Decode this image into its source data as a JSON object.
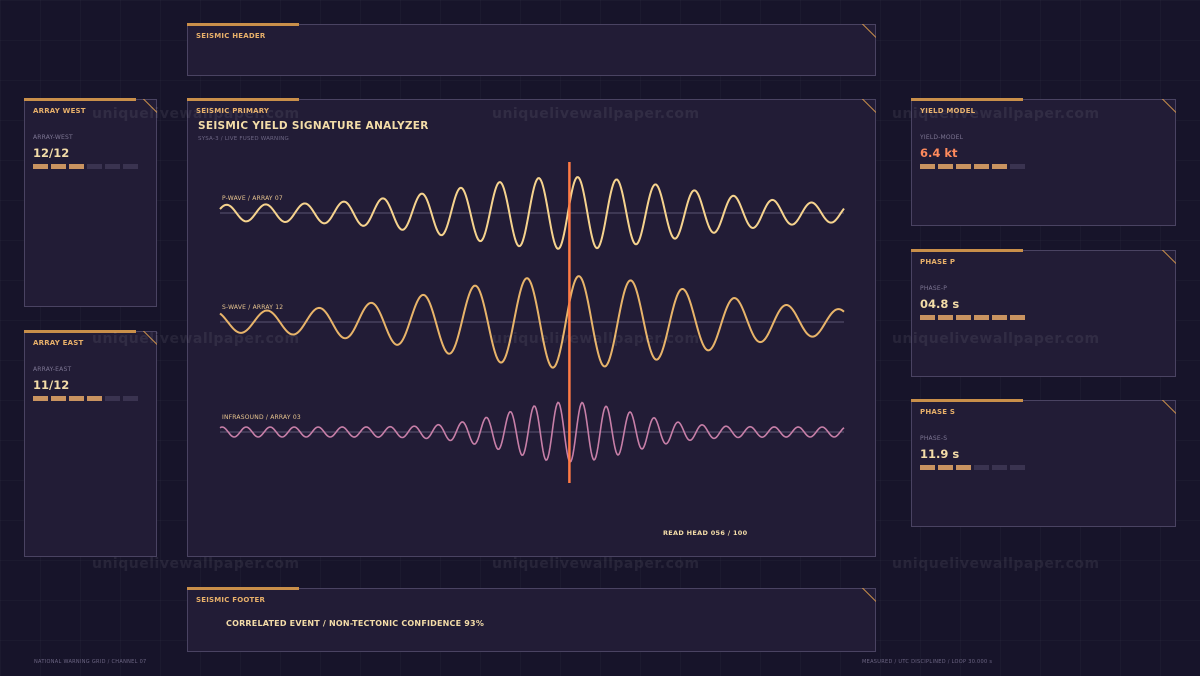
{
  "header": {
    "title": "SEISMIC HEADER"
  },
  "primary": {
    "panel_title": "SEISMIC PRIMARY",
    "title": "SEISMIC YIELD SIGNATURE ANALYZER",
    "subtitle": "SYSA-3 / LIVE FUSED WARNING",
    "read_head": "READ HEAD 056 / 100",
    "read_head_position": 0.56,
    "traces": [
      {
        "label": "P-WAVE / ARRAY 07",
        "color": "#f6d38e"
      },
      {
        "label": "S-WAVE / ARRAY 12",
        "color": "#e8b46a"
      },
      {
        "label": "INFRASOUND / ARRAY 03",
        "color": "#c77fa8"
      }
    ],
    "cursor_color": "#ff7a45"
  },
  "footer": {
    "panel_title": "SEISMIC FOOTER",
    "text": "CORRELATED EVENT / NON-TECTONIC CONFIDENCE 93%"
  },
  "metrics": {
    "west": {
      "title": "ARRAY WEST",
      "label": "ARRAY-WEST",
      "value": "12/12",
      "level": 3,
      "segments": 6
    },
    "east": {
      "title": "ARRAY EAST",
      "label": "ARRAY-EAST",
      "value": "11/12",
      "level": 4,
      "segments": 6
    },
    "yield": {
      "title": "YIELD MODEL",
      "label": "YIELD-MODEL",
      "value": "6.4 kt",
      "level": 5,
      "segments": 6
    },
    "phasep": {
      "title": "PHASE P",
      "label": "PHASE-P",
      "value": "04.8 s",
      "level": 6,
      "segments": 6
    },
    "phases": {
      "title": "PHASE S",
      "label": "PHASE-S",
      "value": "11.9 s",
      "level": 3,
      "segments": 6
    }
  },
  "status": {
    "left": "NATIONAL WARNING GRID / CHANNEL 07",
    "right": "MEASURED / UTC DISCIPLINED / LOOP 30.000 s"
  },
  "watermark": "uniquelivewallpaper.com",
  "colors": {
    "accent": "#c98f4a",
    "alert": "#ff8a5c",
    "background": "#17142a",
    "panel": "#221c36"
  }
}
